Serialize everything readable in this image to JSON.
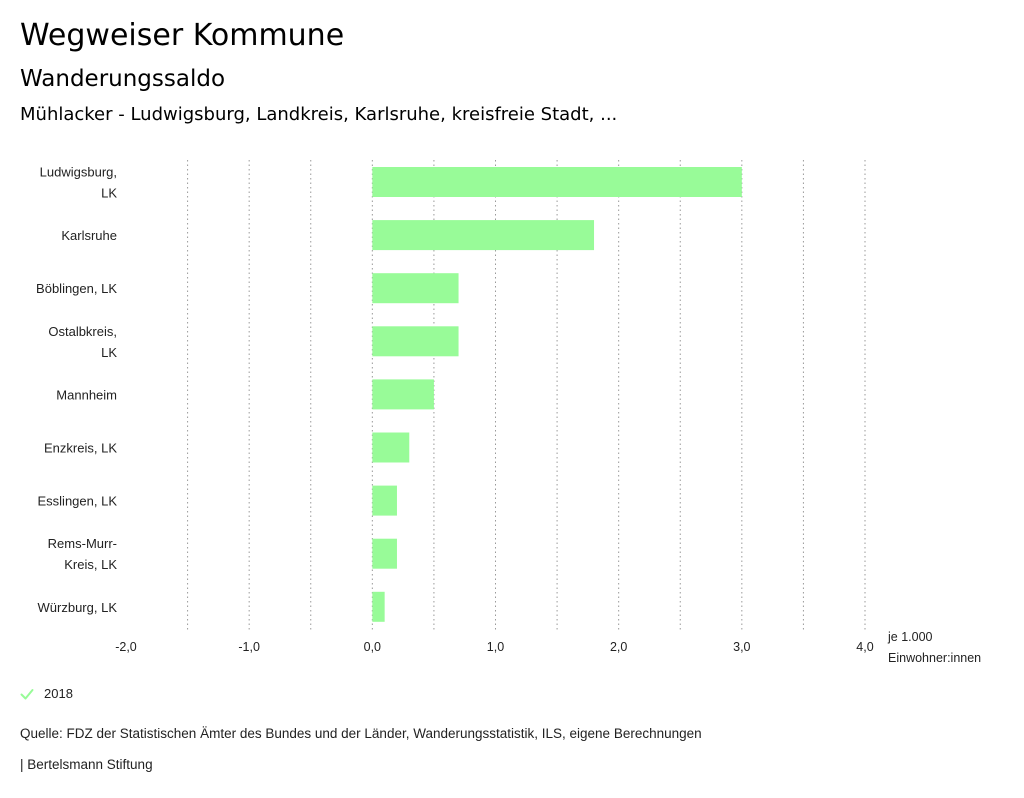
{
  "header": {
    "title": "Wegweiser Kommune",
    "subtitle": "Wanderungssaldo",
    "region": "Mühlacker - Ludwigsburg, Landkreis, Karlsruhe, kreisfreie Stadt, ..."
  },
  "chart_data": {
    "type": "bar",
    "orientation": "horizontal",
    "categories": [
      [
        "Ludwigsburg,",
        "LK"
      ],
      [
        "Karlsruhe"
      ],
      [
        "Böblingen, LK"
      ],
      [
        "Ostalbkreis,",
        "LK"
      ],
      [
        "Mannheim"
      ],
      [
        "Enzkreis, LK"
      ],
      [
        "Esslingen, LK"
      ],
      [
        "Rems-Murr-",
        "Kreis, LK"
      ],
      [
        "Würzburg, LK"
      ]
    ],
    "series": [
      {
        "name": "2018",
        "color": "#98fb98",
        "values": [
          3.0,
          1.8,
          0.7,
          0.7,
          0.5,
          0.3,
          0.2,
          0.2,
          0.1
        ]
      }
    ],
    "xlim": [
      -2.0,
      4.0
    ],
    "ticks": [
      -2.0,
      -1.0,
      0.0,
      1.0,
      2.0,
      3.0,
      4.0
    ],
    "tick_labels": [
      "-2,0",
      "-1,0",
      "0,0",
      "1,0",
      "2,0",
      "3,0",
      "4,0"
    ],
    "minor_grid": [
      -1.5,
      -0.5,
      0.5,
      1.5,
      2.5,
      3.5
    ],
    "unit_label": [
      "je 1.000",
      "Einwohner:innen"
    ],
    "grid": "dotted vertical"
  },
  "legend": {
    "label": "2018",
    "color": "#98fb98"
  },
  "footer": {
    "source": "Quelle: FDZ der Statistischen Ämter des Bundes und der Länder, Wanderungsstatistik, ILS, eigene Berechnungen",
    "credit": "| Bertelsmann Stiftung"
  }
}
